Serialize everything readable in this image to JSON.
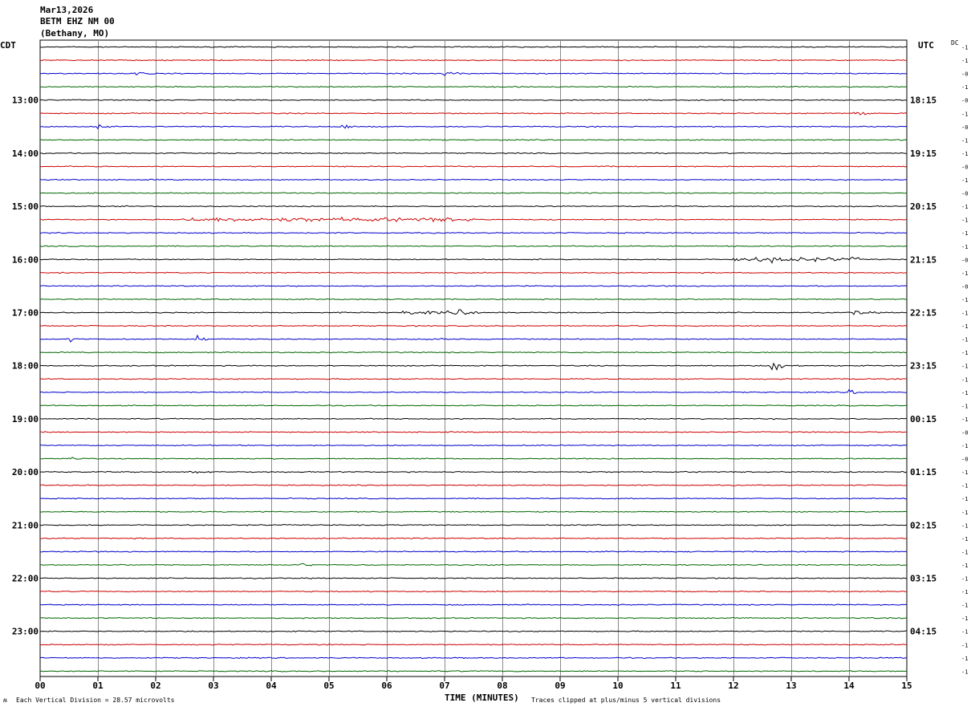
{
  "header": {
    "date": "Mar13,2026",
    "station": "BETM EHZ NM 00",
    "location": "(Bethany, MO)"
  },
  "chart_data": {
    "type": "line",
    "left_timezone": "CDT",
    "right_timezone": "UTC",
    "dc_label": "DC",
    "xlabel": "TIME (MINUTES)",
    "x_range": [
      0,
      15
    ],
    "x_ticks": [
      "00",
      "01",
      "02",
      "03",
      "04",
      "05",
      "06",
      "07",
      "08",
      "09",
      "10",
      "11",
      "12",
      "13",
      "14",
      "15"
    ],
    "left_hour_labels": [
      "13:00",
      "14:00",
      "15:00",
      "16:00",
      "17:00",
      "18:00",
      "19:00",
      "20:00",
      "21:00",
      "22:00",
      "23:00"
    ],
    "right_hour_labels": [
      "18:15",
      "19:15",
      "20:15",
      "21:15",
      "22:15",
      "23:15",
      "00:15",
      "01:15",
      "02:15",
      "03:15",
      "04:15"
    ],
    "trace_colors": [
      "#000000",
      "#cc0000",
      "#0000cc",
      "#006600"
    ],
    "dc_offsets": [
      "-1",
      "-1",
      "-0",
      "-1",
      "-0",
      "-1",
      "-0",
      "-1",
      "-1",
      "-0",
      "-1",
      "-0",
      "-1",
      "-1",
      "-1",
      "-1",
      "-0",
      "-1",
      "-0",
      "-1",
      "-1",
      "-1",
      "-1",
      "-1",
      "-1",
      "-1",
      "-1",
      "-1",
      "-1",
      "-0",
      "-1",
      "-0",
      "-1",
      "-1",
      "-1",
      "-1",
      "-1",
      "-1",
      "-1",
      "-1",
      "-1",
      "-1",
      "-1",
      "-1",
      "-1",
      "-1",
      "-1",
      "-1"
    ],
    "events": [
      {
        "trace": 2,
        "minute": 1.6,
        "amp": 4
      },
      {
        "trace": 2,
        "minute": 7.0,
        "amp": 4
      },
      {
        "trace": 5,
        "minute": 14.1,
        "amp": 7
      },
      {
        "trace": 6,
        "minute": 1.0,
        "amp": 5
      },
      {
        "trace": 6,
        "minute": 5.2,
        "amp": 6
      },
      {
        "trace": 16,
        "minute": 12.6,
        "amp": 4
      },
      {
        "trace": 20,
        "minute": 7.2,
        "amp": 4
      },
      {
        "trace": 20,
        "minute": 14.1,
        "amp": 7
      },
      {
        "trace": 22,
        "minute": 0.5,
        "amp": 4
      },
      {
        "trace": 22,
        "minute": 2.7,
        "amp": 5
      },
      {
        "trace": 22,
        "minute": 6.7,
        "amp": 3
      },
      {
        "trace": 24,
        "minute": 12.65,
        "amp": 18
      },
      {
        "trace": 26,
        "minute": 14.0,
        "amp": 4
      },
      {
        "trace": 31,
        "minute": 0.5,
        "amp": 3
      },
      {
        "trace": 32,
        "minute": 2.6,
        "amp": 3
      },
      {
        "trace": 39,
        "minute": 4.4,
        "amp": 6
      }
    ],
    "noisy_segments": [
      {
        "trace": 13,
        "from": 2.4,
        "to": 7.6,
        "amp": 2.5
      },
      {
        "trace": 16,
        "from": 12.0,
        "to": 14.2,
        "amp": 2.5
      },
      {
        "trace": 20,
        "from": 6.2,
        "to": 7.6,
        "amp": 2
      }
    ],
    "footnotes": {
      "scale": "Each Vertical Division =   28.57 microvolts",
      "clip": "Traces clipped at plus/minus 5 vertical divisions"
    }
  }
}
